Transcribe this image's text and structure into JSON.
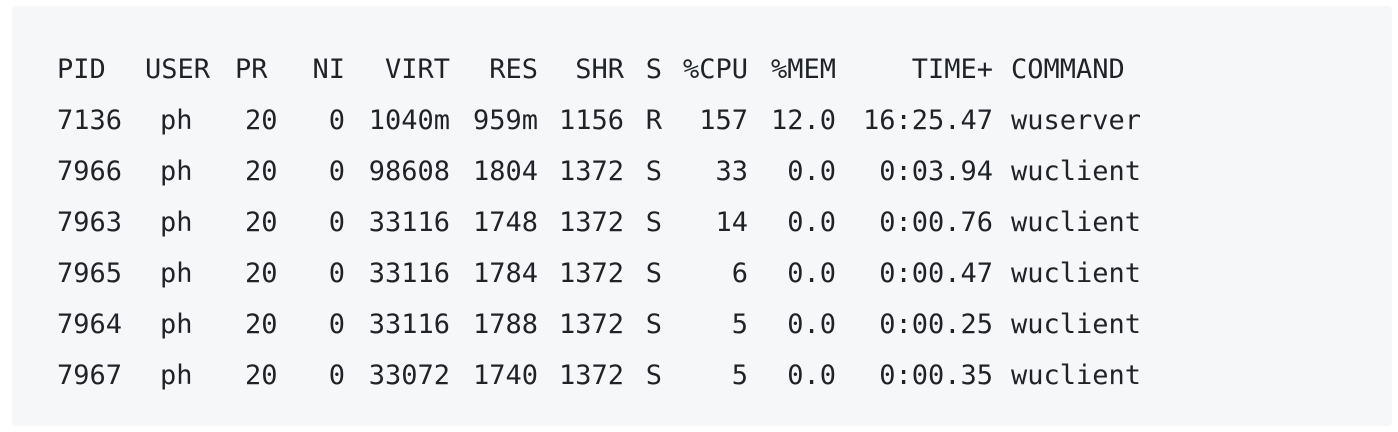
{
  "headers": {
    "pid": "PID",
    "user": "USER",
    "pr": "PR",
    "ni": "NI",
    "virt": "VIRT",
    "res": "RES",
    "shr": "SHR",
    "s": "S",
    "cpu": "%CPU",
    "mem": "%MEM",
    "time": "TIME+",
    "command": "COMMAND"
  },
  "rows": [
    {
      "pid": "7136",
      "user": "ph",
      "pr": "20",
      "ni": "0",
      "virt": "1040m",
      "res": "959m",
      "shr": "1156",
      "s": "R",
      "cpu": "157",
      "mem": "12.0",
      "time": "16:25.47",
      "command": "wuserver"
    },
    {
      "pid": "7966",
      "user": "ph",
      "pr": "20",
      "ni": "0",
      "virt": "98608",
      "res": "1804",
      "shr": "1372",
      "s": "S",
      "cpu": "33",
      "mem": "0.0",
      "time": "0:03.94",
      "command": "wuclient"
    },
    {
      "pid": "7963",
      "user": "ph",
      "pr": "20",
      "ni": "0",
      "virt": "33116",
      "res": "1748",
      "shr": "1372",
      "s": "S",
      "cpu": "14",
      "mem": "0.0",
      "time": "0:00.76",
      "command": "wuclient"
    },
    {
      "pid": "7965",
      "user": "ph",
      "pr": "20",
      "ni": "0",
      "virt": "33116",
      "res": "1784",
      "shr": "1372",
      "s": "S",
      "cpu": "6",
      "mem": "0.0",
      "time": "0:00.47",
      "command": "wuclient"
    },
    {
      "pid": "7964",
      "user": "ph",
      "pr": "20",
      "ni": "0",
      "virt": "33116",
      "res": "1788",
      "shr": "1372",
      "s": "S",
      "cpu": "5",
      "mem": "0.0",
      "time": "0:00.25",
      "command": "wuclient"
    },
    {
      "pid": "7967",
      "user": "ph",
      "pr": "20",
      "ni": "0",
      "virt": "33072",
      "res": "1740",
      "shr": "1372",
      "s": "S",
      "cpu": "5",
      "mem": "0.0",
      "time": "0:00.35",
      "command": "wuclient"
    }
  ]
}
